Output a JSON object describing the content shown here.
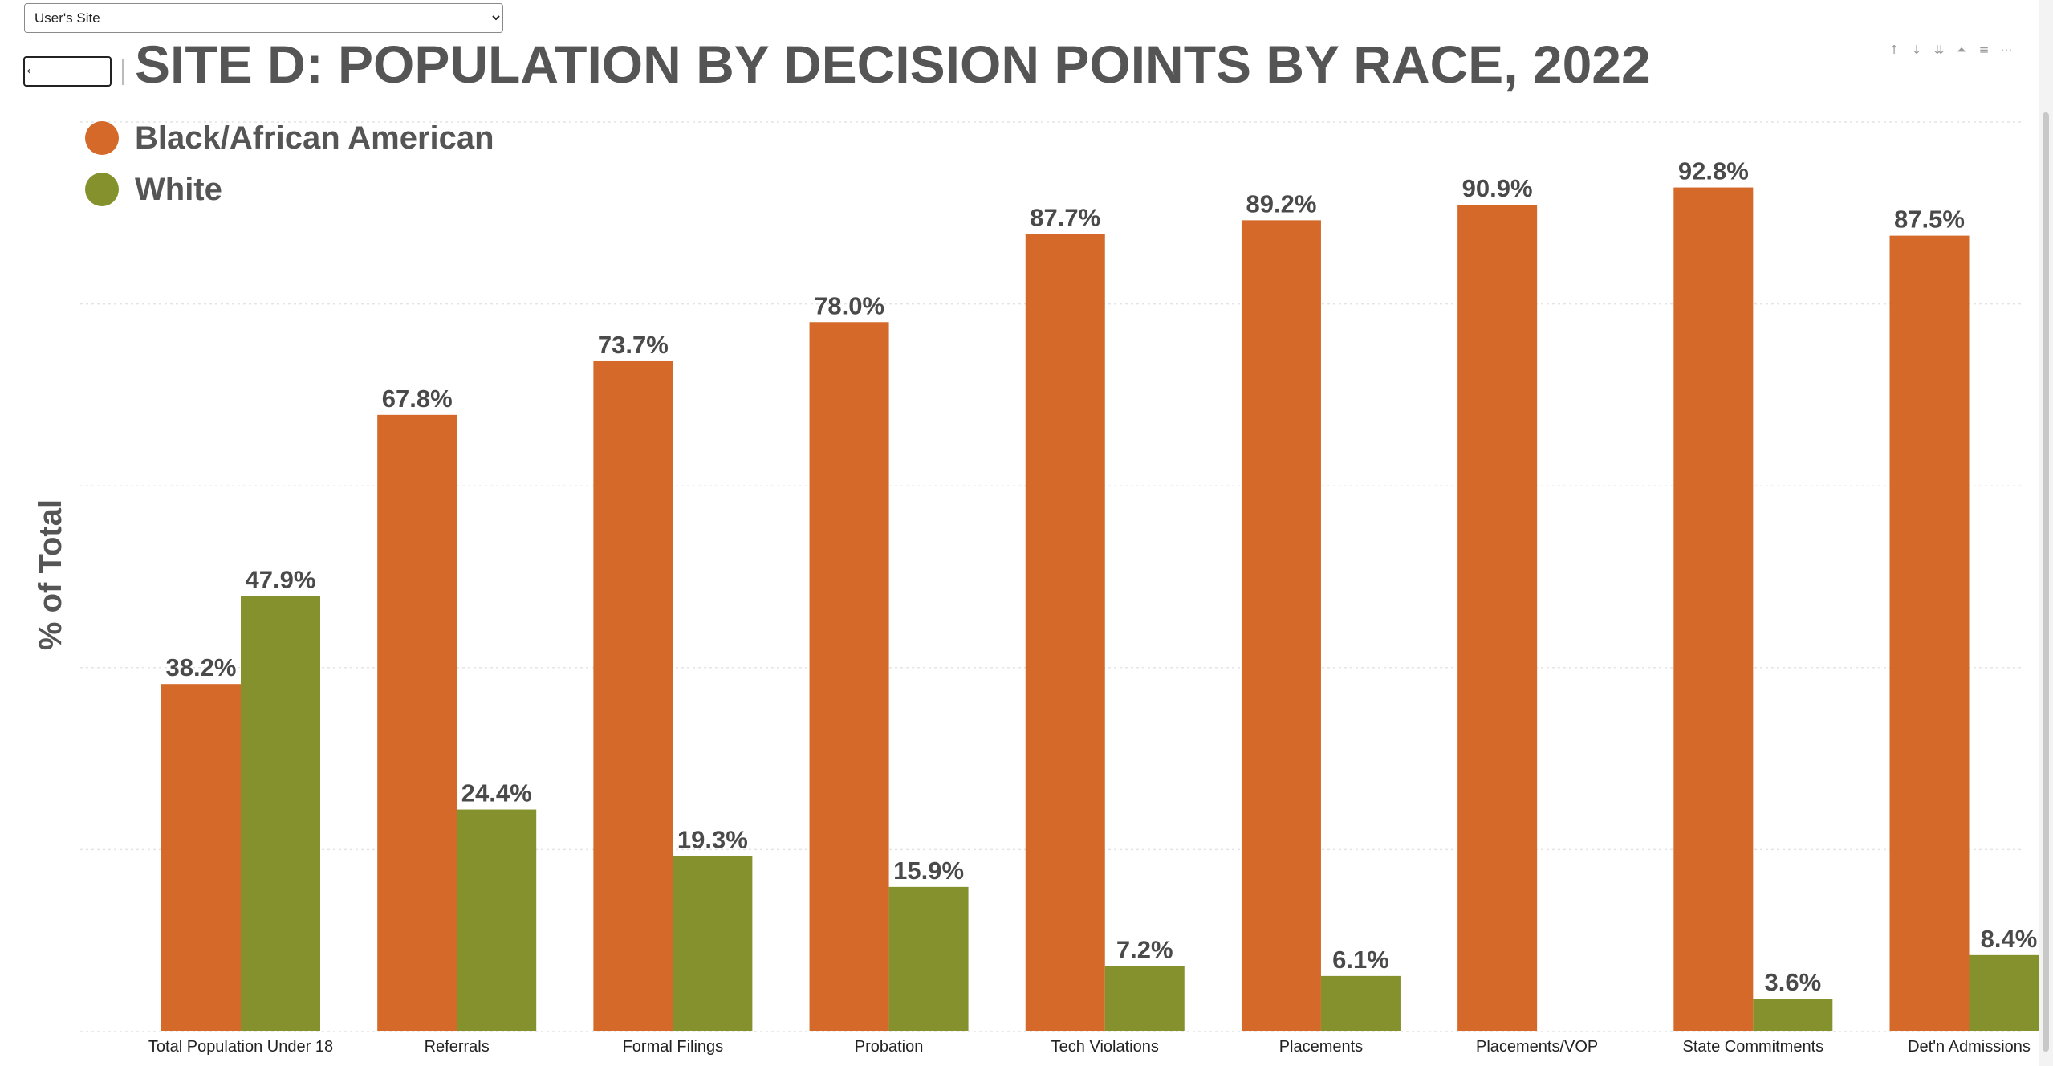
{
  "filter": {
    "selected": "User's Site"
  },
  "header": {
    "back_label": "‹",
    "title": "SITE D: POPULATION BY DECISION POINTS BY RACE, 2022"
  },
  "toolbar": {
    "icons": [
      {
        "name": "sort-ascending-icon",
        "glyph": "↑"
      },
      {
        "name": "sort-descending-icon",
        "glyph": "↓"
      },
      {
        "name": "expand-all-icon",
        "glyph": "⇊"
      },
      {
        "name": "drill-up-icon",
        "glyph": "⏶"
      },
      {
        "name": "filter-icon",
        "glyph": "≡"
      },
      {
        "name": "more-options-icon",
        "glyph": "⋯"
      }
    ]
  },
  "chart_data": {
    "type": "bar",
    "title": "SITE D: POPULATION BY DECISION POINTS BY RACE, 2022",
    "xlabel": "",
    "ylabel": "% of Total",
    "ylim": [
      0,
      100
    ],
    "grid": true,
    "legend_position": "top-left",
    "categories": [
      "Total Population Under 18",
      "Referrals",
      "Formal Filings",
      "Probation",
      "Tech Violations",
      "Placements",
      "Placements/VOP",
      "State Commitments",
      "Det'n Admissions"
    ],
    "series": [
      {
        "name": "Black/African American",
        "color": "#d4692a",
        "values": [
          38.2,
          67.8,
          73.7,
          78.0,
          87.7,
          89.2,
          90.9,
          92.8,
          87.5
        ],
        "labels": [
          "38.2%",
          "67.8%",
          "73.7%",
          "78.0%",
          "87.7%",
          "89.2%",
          "90.9%",
          "92.8%",
          "87.5%"
        ]
      },
      {
        "name": "White",
        "color": "#85912c",
        "values": [
          47.9,
          24.4,
          19.3,
          15.9,
          7.2,
          6.1,
          null,
          3.6,
          8.4
        ],
        "labels": [
          "47.9%",
          "24.4%",
          "19.3%",
          "15.9%",
          "7.2%",
          "6.1%",
          "",
          "3.6%",
          "8.4%"
        ]
      }
    ]
  }
}
